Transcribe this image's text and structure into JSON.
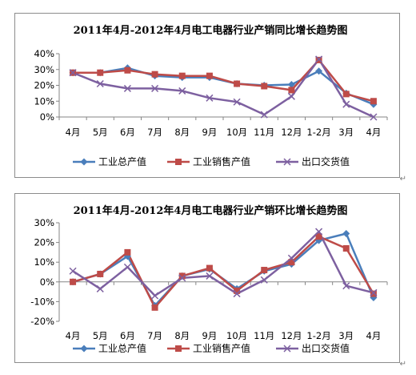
{
  "chart_data": [
    {
      "type": "line",
      "title": "2011年4月-2012年4月电工电器行业产销同比增长趋势图",
      "categories": [
        "4月",
        "5月",
        "6月",
        "7月",
        "8月",
        "9月",
        "10月",
        "11月",
        "12月",
        "1-2月",
        "3月",
        "4月"
      ],
      "yticks": [
        "0%",
        "10%",
        "20%",
        "30%",
        "40%"
      ],
      "ylim": [
        0,
        40
      ],
      "grid": false,
      "legend": "bottom",
      "series": [
        {
          "name": "工业总产值",
          "color": "#4a7ebb",
          "marker": "diamond",
          "values": [
            28,
            28,
            31,
            26,
            25,
            25,
            21,
            20,
            20.5,
            29,
            15,
            8
          ]
        },
        {
          "name": "工业销售产值",
          "color": "#be4b48",
          "marker": "square",
          "values": [
            28,
            28,
            29.5,
            27,
            26,
            26,
            21,
            19.5,
            17,
            36,
            14.5,
            10
          ]
        },
        {
          "name": "出口交货值",
          "color": "#7d60a0",
          "marker": "x",
          "values": [
            28,
            21,
            18,
            18,
            16.5,
            12,
            9.5,
            1.5,
            13,
            36.5,
            8,
            0
          ]
        }
      ]
    },
    {
      "type": "line",
      "title": "2011年4月-2012年4月电工电器行业产销环比增长趋势图",
      "categories": [
        "4月",
        "5月",
        "6月",
        "7月",
        "8月",
        "9月",
        "10月",
        "11月",
        "12月",
        "1-2月",
        "3月",
        "4月"
      ],
      "yticks": [
        "-20%",
        "-10%",
        "0%",
        "10%",
        "20%",
        "30%"
      ],
      "ylim": [
        -20,
        30
      ],
      "grid": false,
      "legend": "bottom",
      "series": [
        {
          "name": "工业总产值",
          "color": "#4a7ebb",
          "marker": "diamond",
          "values": [
            0,
            4,
            13,
            -12,
            3,
            6.5,
            -3.5,
            5.5,
            9,
            21,
            24.5,
            -8
          ]
        },
        {
          "name": "工业销售产值",
          "color": "#be4b48",
          "marker": "square",
          "values": [
            0,
            4,
            15,
            -13,
            3,
            7,
            -4.5,
            6,
            10,
            23,
            17,
            -6
          ]
        },
        {
          "name": "出口交货值",
          "color": "#7d60a0",
          "marker": "x",
          "values": [
            5.5,
            -3.5,
            7.5,
            -7,
            2,
            3,
            -6,
            1,
            12,
            25.5,
            -2,
            -5.5
          ]
        }
      ]
    }
  ]
}
